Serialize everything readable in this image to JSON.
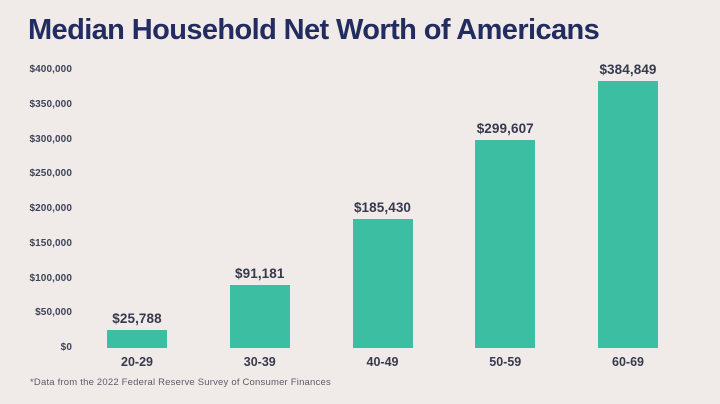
{
  "page": {
    "title": "Median Household Net Worth of Americans",
    "footnote": "*Data from the 2022 Federal Reserve Survey of Consumer Finances",
    "background_color": "#f0ebe8",
    "title_color": "#222c60"
  },
  "chart_data": {
    "type": "bar",
    "title": "Median Household Net Worth of Americans",
    "categories": [
      "20-29",
      "30-39",
      "40-49",
      "50-59",
      "60-69"
    ],
    "values": [
      25788,
      91181,
      185430,
      299607,
      384849
    ],
    "value_labels": [
      "$25,788",
      "$91,181",
      "$185,430",
      "$299,607",
      "$384,849"
    ],
    "xlabel": "",
    "ylabel": "",
    "ylim": [
      0,
      400000
    ],
    "ytick_step": 50000,
    "ytick_labels": [
      "$0",
      "$50,000",
      "$100,000",
      "$150,000",
      "$200,000",
      "$250,000",
      "$300,000",
      "$350,000",
      "$400,000"
    ],
    "bar_color": "#3cbea2",
    "grid": false,
    "legend": null,
    "source_note": "*Data from the 2022 Federal Reserve Survey of Consumer Finances"
  }
}
